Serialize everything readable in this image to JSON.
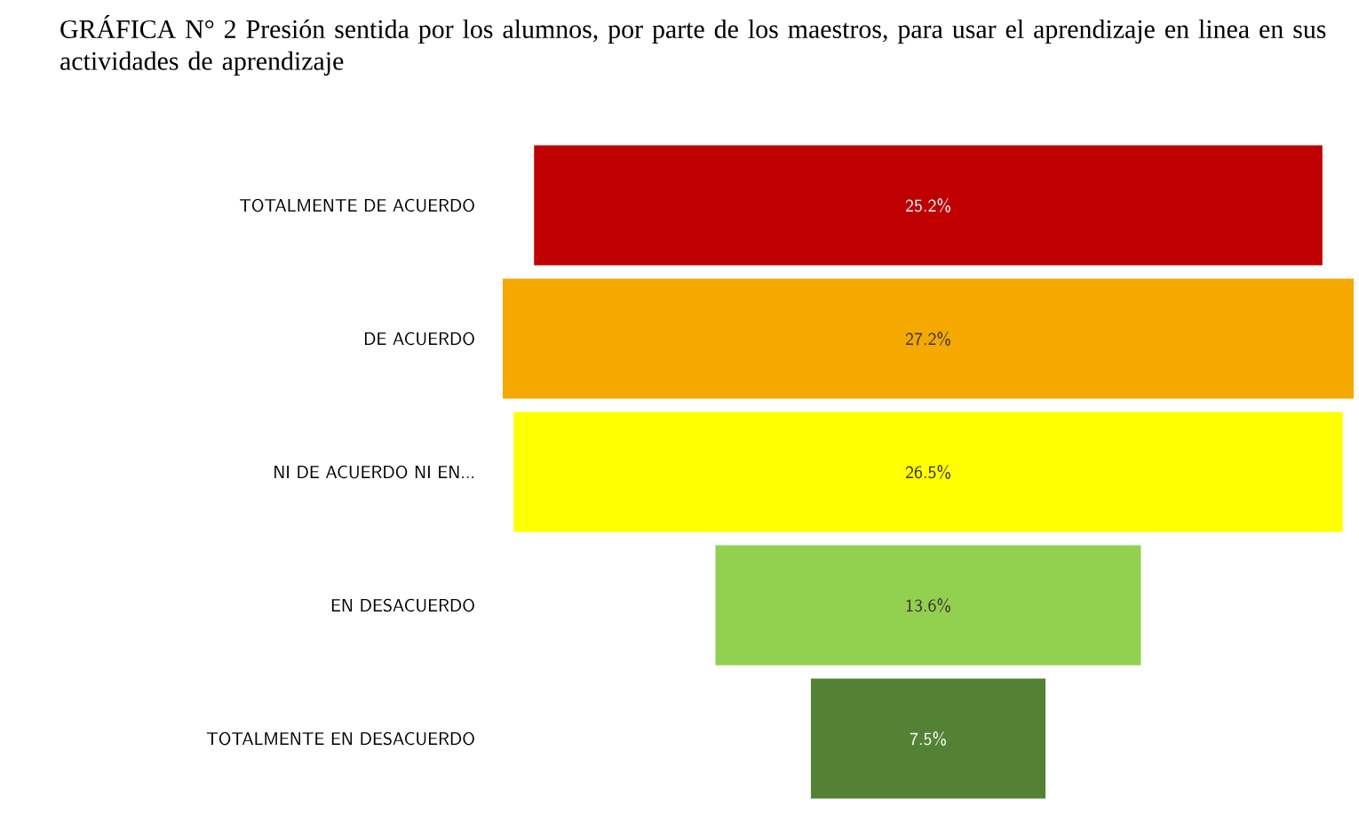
{
  "chart_data": {
    "type": "other",
    "title": "GRÁFICA N° 2 Presión sentida por los alumnos, por parte de los maestros, para usar el aprendizaje en linea en sus actividades de aprendizaje",
    "categories": [
      "TOTALMENTE DE ACUERDO",
      "DE ACUERDO",
      "NI DE ACUERDO NI EN...",
      "EN DESACUERDO",
      "TOTALMENTE EN DESACUERDO"
    ],
    "values": [
      25.2,
      27.2,
      26.5,
      13.6,
      7.5
    ],
    "value_labels": [
      "25.2%",
      "27.2%",
      "26.5%",
      "13.6%",
      "7.5%"
    ],
    "colors": [
      "#c00000",
      "#f5a800",
      "#ffff00",
      "#92d050",
      "#548235"
    ]
  }
}
